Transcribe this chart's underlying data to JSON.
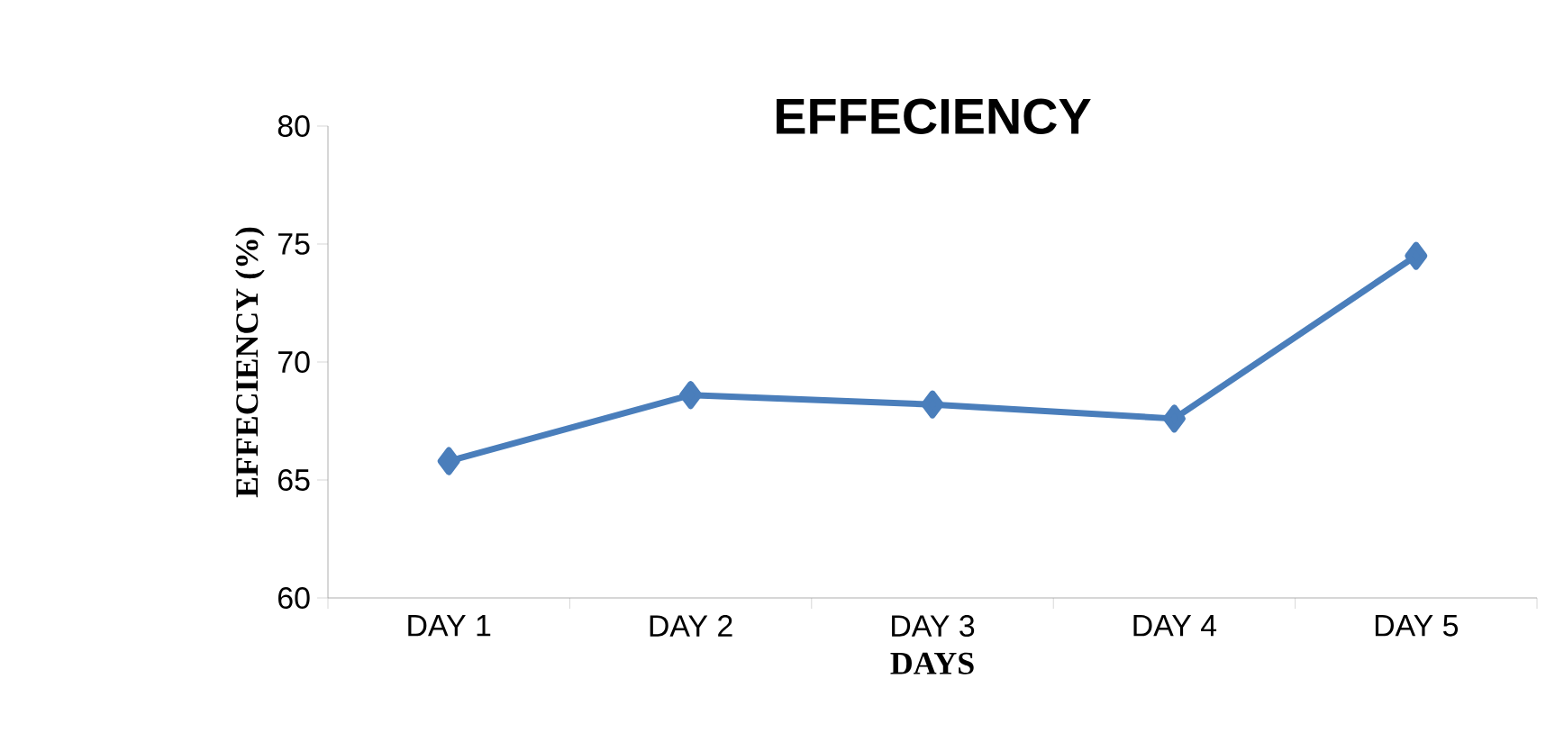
{
  "chart_data": {
    "type": "line",
    "title": "EFFECIENCY",
    "xlabel": "DAYS",
    "ylabel": "EFFECIENCY (%)",
    "categories": [
      "DAY 1",
      "DAY 2",
      "DAY 3",
      "DAY 4",
      "DAY 5"
    ],
    "series": [
      {
        "color": "#4a7ebb",
        "values": [
          65.8,
          68.6,
          68.2,
          67.6,
          74.5
        ]
      }
    ],
    "ylim": [
      60,
      80
    ],
    "yticks": [
      60,
      65,
      70,
      75,
      80
    ],
    "grid": false,
    "marker": "diamond",
    "line_style": "solid"
  }
}
